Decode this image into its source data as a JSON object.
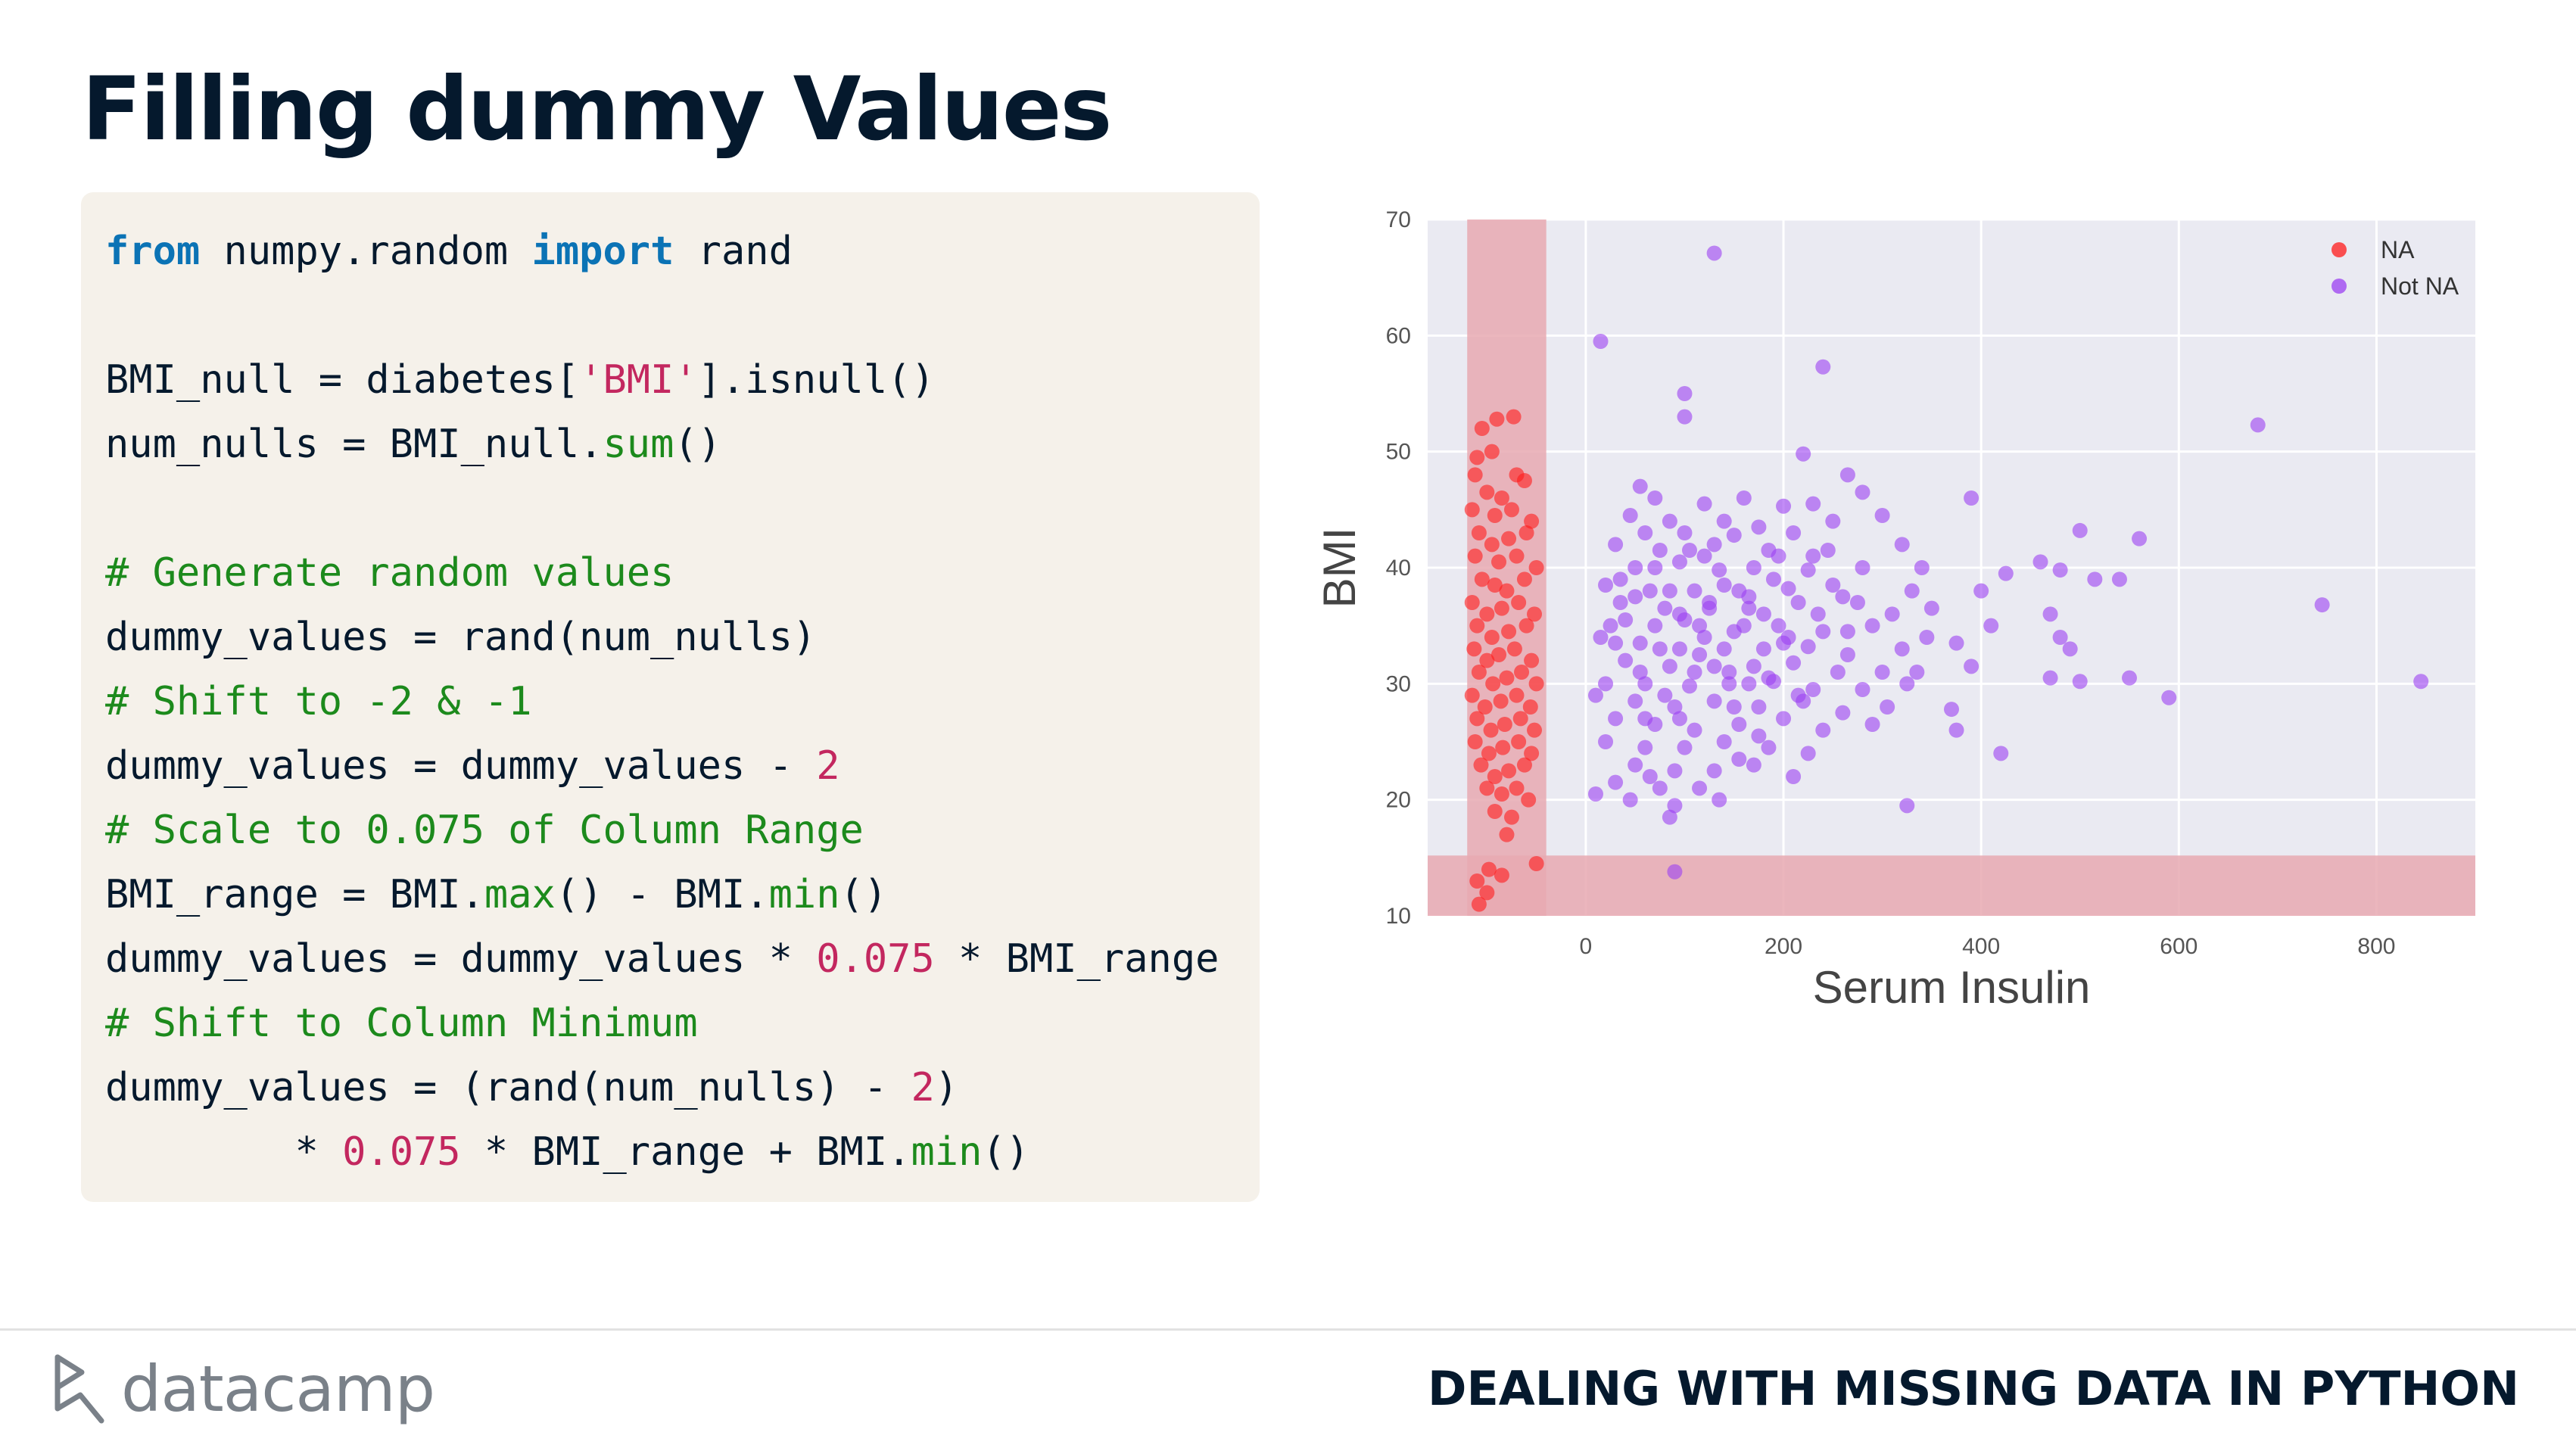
{
  "slide": {
    "title": "Filling dummy Values"
  },
  "code": [
    [
      {
        "t": "from",
        "c": "kw"
      },
      {
        "t": " numpy.random "
      },
      {
        "t": "import",
        "c": "kw"
      },
      {
        "t": " rand"
      }
    ],
    [],
    [
      {
        "t": "BMI_null = diabetes["
      },
      {
        "t": "'BMI'",
        "c": "str"
      },
      {
        "t": "].isnull()"
      }
    ],
    [
      {
        "t": "num_nulls = BMI_null."
      },
      {
        "t": "sum",
        "c": "fn"
      },
      {
        "t": "()"
      }
    ],
    [],
    [
      {
        "t": "# Generate random values",
        "c": "cm"
      }
    ],
    [
      {
        "t": "dummy_values = rand(num_nulls)"
      }
    ],
    [
      {
        "t": "# Shift to -2 & -1",
        "c": "cm"
      }
    ],
    [
      {
        "t": "dummy_values = dummy_values - "
      },
      {
        "t": "2",
        "c": "num"
      }
    ],
    [
      {
        "t": "# Scale to 0.075 of Column Range",
        "c": "cm"
      }
    ],
    [
      {
        "t": "BMI_range = BMI."
      },
      {
        "t": "max",
        "c": "fn"
      },
      {
        "t": "() - BMI."
      },
      {
        "t": "min",
        "c": "fn"
      },
      {
        "t": "()"
      }
    ],
    [
      {
        "t": "dummy_values = dummy_values * "
      },
      {
        "t": "0.075",
        "c": "num"
      },
      {
        "t": " * BMI_range"
      }
    ],
    [
      {
        "t": "# Shift to Column Minimum",
        "c": "cm"
      }
    ],
    [
      {
        "t": "dummy_values = (rand(num_nulls) - "
      },
      {
        "t": "2",
        "c": "num"
      },
      {
        "t": ")"
      }
    ],
    [
      {
        "t": "        * "
      },
      {
        "t": "0.075",
        "c": "num"
      },
      {
        "t": " * BMI_range + BMI."
      },
      {
        "t": "min",
        "c": "fn"
      },
      {
        "t": "()"
      }
    ]
  ],
  "chart_data": {
    "type": "scatter",
    "xlabel": "Serum Insulin",
    "ylabel": "BMI",
    "xlim": [
      -160,
      900
    ],
    "ylim": [
      10,
      70
    ],
    "xticks": [
      0,
      200,
      400,
      600,
      800
    ],
    "yticks": [
      10,
      20,
      30,
      40,
      50,
      60,
      70
    ],
    "grid": true,
    "legend": "top-right",
    "background": "#eaeaf2",
    "bands": {
      "x": [
        -120,
        -40
      ],
      "y": [
        10,
        15.2
      ],
      "color": "#e8a9b2"
    },
    "series": [
      {
        "name": "NA",
        "color": "#ff1a1a",
        "points": [
          [
            -105,
            52
          ],
          [
            -90,
            52.8
          ],
          [
            -73,
            53
          ],
          [
            -110,
            49.5
          ],
          [
            -95,
            50
          ],
          [
            -112,
            48
          ],
          [
            -70,
            48
          ],
          [
            -100,
            46.5
          ],
          [
            -85,
            46
          ],
          [
            -62,
            47.5
          ],
          [
            -115,
            45
          ],
          [
            -92,
            44.5
          ],
          [
            -75,
            45
          ],
          [
            -55,
            44
          ],
          [
            -108,
            43
          ],
          [
            -95,
            42
          ],
          [
            -78,
            42.5
          ],
          [
            -60,
            43
          ],
          [
            -112,
            41
          ],
          [
            -88,
            40.5
          ],
          [
            -70,
            41
          ],
          [
            -50,
            40
          ],
          [
            -105,
            39
          ],
          [
            -92,
            38.5
          ],
          [
            -80,
            38
          ],
          [
            -62,
            39
          ],
          [
            -115,
            37
          ],
          [
            -100,
            36
          ],
          [
            -85,
            36.5
          ],
          [
            -68,
            37
          ],
          [
            -52,
            36
          ],
          [
            -110,
            35
          ],
          [
            -95,
            34
          ],
          [
            -78,
            34.5
          ],
          [
            -60,
            35
          ],
          [
            -113,
            33
          ],
          [
            -100,
            32
          ],
          [
            -88,
            32.5
          ],
          [
            -72,
            33
          ],
          [
            -55,
            32
          ],
          [
            -108,
            31
          ],
          [
            -94,
            30
          ],
          [
            -80,
            30.5
          ],
          [
            -65,
            31
          ],
          [
            -50,
            30
          ],
          [
            -115,
            29
          ],
          [
            -102,
            28
          ],
          [
            -86,
            28.5
          ],
          [
            -70,
            29
          ],
          [
            -56,
            28
          ],
          [
            -110,
            27
          ],
          [
            -96,
            26
          ],
          [
            -82,
            26.5
          ],
          [
            -66,
            27
          ],
          [
            -52,
            26
          ],
          [
            -112,
            25
          ],
          [
            -98,
            24
          ],
          [
            -84,
            24.5
          ],
          [
            -68,
            25
          ],
          [
            -55,
            24
          ],
          [
            -106,
            23
          ],
          [
            -92,
            22
          ],
          [
            -78,
            22.5
          ],
          [
            -62,
            23
          ],
          [
            -100,
            21
          ],
          [
            -85,
            20.5
          ],
          [
            -70,
            21
          ],
          [
            -58,
            20
          ],
          [
            -92,
            19
          ],
          [
            -75,
            18.5
          ],
          [
            -80,
            17
          ],
          [
            -110,
            13
          ],
          [
            -98,
            14
          ],
          [
            -85,
            13.5
          ],
          [
            -50,
            14.5
          ],
          [
            -108,
            11
          ],
          [
            -100,
            12
          ]
        ]
      },
      {
        "name": "Not NA",
        "color": "#9b3ff2",
        "points": [
          [
            130,
            67.1
          ],
          [
            15,
            59.5
          ],
          [
            240,
            57.3
          ],
          [
            100,
            55
          ],
          [
            100,
            53
          ],
          [
            680,
            52.3
          ],
          [
            220,
            49.8
          ],
          [
            265,
            48
          ],
          [
            280,
            46.5
          ],
          [
            390,
            46
          ],
          [
            55,
            47
          ],
          [
            70,
            46
          ],
          [
            120,
            45.5
          ],
          [
            160,
            46
          ],
          [
            200,
            45.3
          ],
          [
            230,
            45.5
          ],
          [
            45,
            44.5
          ],
          [
            85,
            44
          ],
          [
            140,
            44
          ],
          [
            175,
            43.5
          ],
          [
            250,
            44
          ],
          [
            300,
            44.5
          ],
          [
            60,
            43
          ],
          [
            100,
            43
          ],
          [
            150,
            42.8
          ],
          [
            210,
            43
          ],
          [
            30,
            42
          ],
          [
            75,
            41.5
          ],
          [
            120,
            41
          ],
          [
            195,
            41
          ],
          [
            245,
            41.5
          ],
          [
            320,
            42
          ],
          [
            500,
            43.2
          ],
          [
            560,
            42.5
          ],
          [
            50,
            40
          ],
          [
            95,
            40.5
          ],
          [
            135,
            39.8
          ],
          [
            170,
            40
          ],
          [
            225,
            39.8
          ],
          [
            280,
            40
          ],
          [
            340,
            40
          ],
          [
            460,
            40.5
          ],
          [
            425,
            39.5
          ],
          [
            480,
            39.8
          ],
          [
            540,
            39
          ],
          [
            20,
            38.5
          ],
          [
            65,
            38
          ],
          [
            110,
            38
          ],
          [
            155,
            38
          ],
          [
            205,
            38.2
          ],
          [
            260,
            37.5
          ],
          [
            330,
            38
          ],
          [
            400,
            38
          ],
          [
            515,
            39
          ],
          [
            35,
            37
          ],
          [
            80,
            36.5
          ],
          [
            125,
            36.5
          ],
          [
            165,
            36.5
          ],
          [
            215,
            37
          ],
          [
            275,
            37
          ],
          [
            310,
            36
          ],
          [
            350,
            36.5
          ],
          [
            470,
            36
          ],
          [
            745,
            36.8
          ],
          [
            25,
            35
          ],
          [
            70,
            35
          ],
          [
            115,
            35
          ],
          [
            150,
            34.5
          ],
          [
            195,
            35
          ],
          [
            240,
            34.5
          ],
          [
            290,
            35
          ],
          [
            345,
            34
          ],
          [
            410,
            35
          ],
          [
            480,
            34
          ],
          [
            15,
            34
          ],
          [
            55,
            33.5
          ],
          [
            95,
            33
          ],
          [
            140,
            33
          ],
          [
            180,
            33
          ],
          [
            225,
            33.2
          ],
          [
            265,
            32.5
          ],
          [
            320,
            33
          ],
          [
            375,
            33.5
          ],
          [
            490,
            33
          ],
          [
            40,
            32
          ],
          [
            85,
            31.5
          ],
          [
            130,
            31.5
          ],
          [
            170,
            31.5
          ],
          [
            210,
            31.8
          ],
          [
            255,
            31
          ],
          [
            300,
            31
          ],
          [
            335,
            31
          ],
          [
            390,
            31.5
          ],
          [
            470,
            30.5
          ],
          [
            500,
            30.2
          ],
          [
            550,
            30.5
          ],
          [
            845,
            30.2
          ],
          [
            20,
            30
          ],
          [
            60,
            30
          ],
          [
            105,
            29.8
          ],
          [
            145,
            30
          ],
          [
            190,
            30.2
          ],
          [
            230,
            29.5
          ],
          [
            280,
            29.5
          ],
          [
            325,
            30
          ],
          [
            590,
            28.8
          ],
          [
            10,
            29
          ],
          [
            50,
            28.5
          ],
          [
            90,
            28
          ],
          [
            130,
            28.5
          ],
          [
            175,
            28
          ],
          [
            220,
            28.5
          ],
          [
            260,
            27.5
          ],
          [
            305,
            28
          ],
          [
            370,
            27.8
          ],
          [
            30,
            27
          ],
          [
            70,
            26.5
          ],
          [
            110,
            26
          ],
          [
            155,
            26.5
          ],
          [
            200,
            27
          ],
          [
            240,
            26
          ],
          [
            290,
            26.5
          ],
          [
            375,
            26
          ],
          [
            20,
            25
          ],
          [
            60,
            24.5
          ],
          [
            100,
            24.5
          ],
          [
            140,
            25
          ],
          [
            185,
            24.5
          ],
          [
            225,
            24
          ],
          [
            420,
            24
          ],
          [
            50,
            23
          ],
          [
            90,
            22.5
          ],
          [
            130,
            22.5
          ],
          [
            170,
            23
          ],
          [
            210,
            22
          ],
          [
            30,
            21.5
          ],
          [
            75,
            21
          ],
          [
            115,
            21
          ],
          [
            45,
            20
          ],
          [
            90,
            19.5
          ],
          [
            135,
            20
          ],
          [
            10,
            20.5
          ],
          [
            325,
            19.5
          ],
          [
            85,
            18.5
          ],
          [
            90,
            13.8
          ],
          [
            100,
            35.5
          ],
          [
            120,
            34
          ],
          [
            160,
            35
          ],
          [
            180,
            36
          ],
          [
            75,
            33
          ],
          [
            55,
            31
          ],
          [
            95,
            36
          ],
          [
            145,
            31
          ],
          [
            205,
            34
          ],
          [
            60,
            27
          ],
          [
            110,
            31
          ],
          [
            165,
            37.5
          ],
          [
            35,
            39
          ],
          [
            130,
            42
          ],
          [
            85,
            38
          ],
          [
            150,
            28
          ],
          [
            190,
            39
          ],
          [
            235,
            36
          ],
          [
            265,
            34.5
          ],
          [
            185,
            30.5
          ],
          [
            40,
            35.5
          ],
          [
            215,
            29
          ],
          [
            125,
            37
          ],
          [
            80,
            29
          ],
          [
            105,
            41.5
          ],
          [
            155,
            23.5
          ],
          [
            70,
            40
          ],
          [
            95,
            27
          ],
          [
            175,
            25.5
          ],
          [
            50,
            37.5
          ],
          [
            140,
            38.5
          ],
          [
            200,
            33.5
          ],
          [
            115,
            32.5
          ],
          [
            165,
            30
          ],
          [
            250,
            38.5
          ],
          [
            30,
            33.5
          ],
          [
            65,
            22
          ],
          [
            185,
            41.5
          ],
          [
            230,
            41
          ]
        ]
      }
    ]
  },
  "footer": {
    "logo_text": "datacamp",
    "course_title": "DEALING WITH MISSING DATA IN PYTHON"
  }
}
